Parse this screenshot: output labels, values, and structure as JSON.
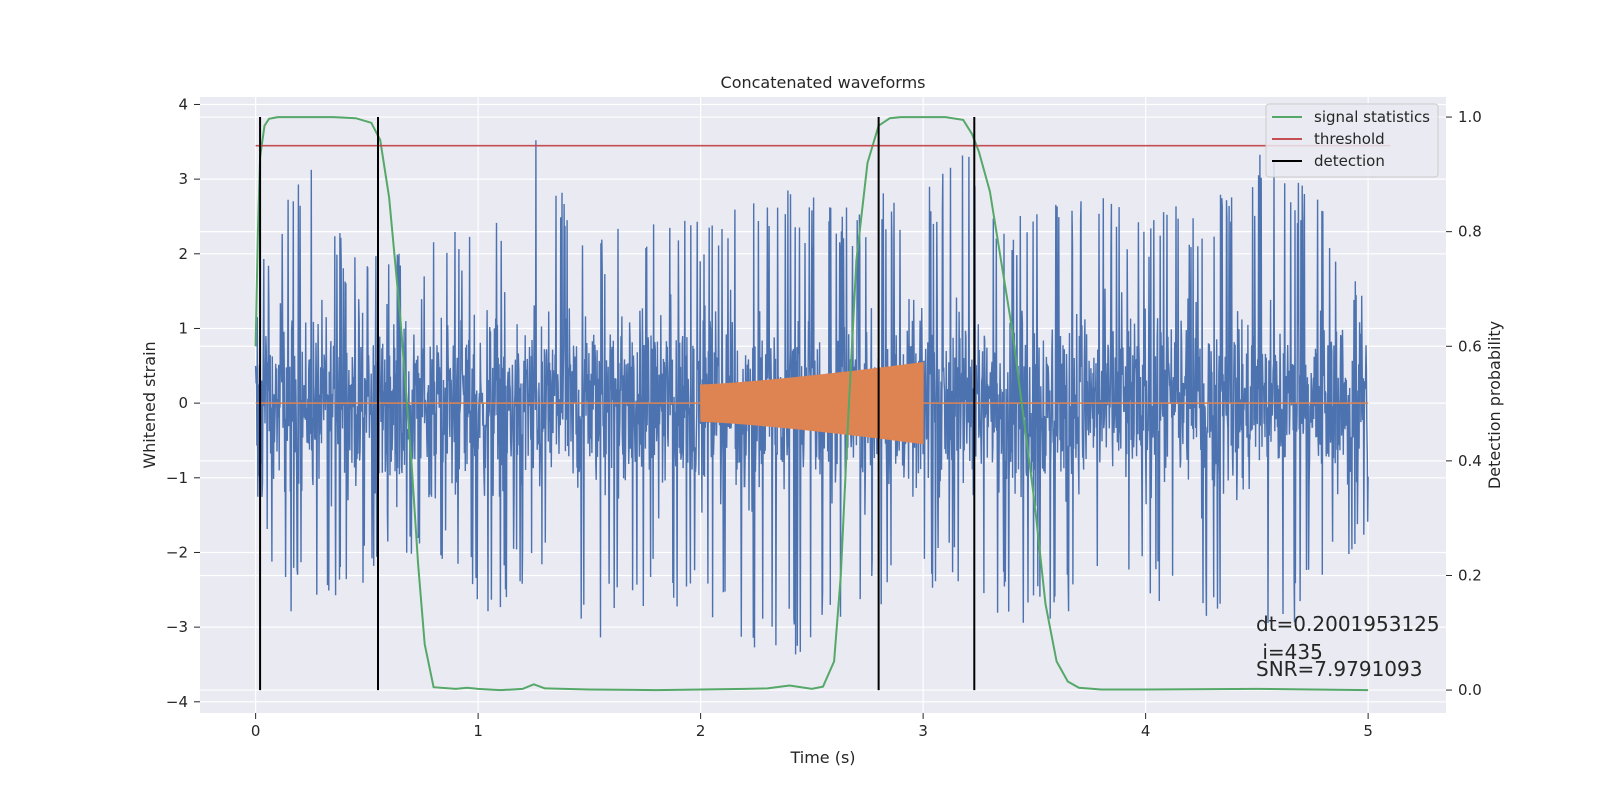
{
  "chart_data": {
    "type": "line",
    "title": "Concatenated waveforms",
    "xlabel": "Time (s)",
    "ylabel": "Whitened strain",
    "y2label": "Detection probability",
    "xlim": [
      -0.25,
      5.35
    ],
    "ylim": [
      -4.15,
      4.1
    ],
    "y2lim": [
      -0.04,
      1.035
    ],
    "xticks": [
      0,
      1,
      2,
      3,
      4,
      5
    ],
    "yticks": [
      -4,
      -3,
      -2,
      -1,
      0,
      1,
      2,
      3,
      4
    ],
    "y2ticks": [
      0.0,
      0.2,
      0.4,
      0.6,
      0.8,
      1.0
    ],
    "xtick_labels": [
      "0",
      "1",
      "2",
      "3",
      "4",
      "5"
    ],
    "ytick_labels": [
      "−4",
      "−3",
      "−2",
      "−1",
      "0",
      "1",
      "2",
      "3",
      "4"
    ],
    "y2tick_labels": [
      "0.0",
      "0.2",
      "0.4",
      "0.6",
      "0.8",
      "1.0"
    ],
    "grid": true,
    "legend_position": "top-right",
    "legend": [
      "signal statistics",
      "threshold",
      "detection"
    ],
    "colors": {
      "strain": "#4c72b0",
      "template": "#dd8452",
      "signal": "#55a868",
      "threshold": "#c44e52",
      "detection": "#000000",
      "background": "#eaeaf2",
      "grid": "#ffffff"
    },
    "series": [
      {
        "axis": "left",
        "color": "#4c72b0",
        "description_range": [
          0,
          5
        ],
        "band": [
          [
            0,
            2.1
          ],
          [
            0.1,
            2.3
          ],
          [
            0.25,
            3.7
          ],
          [
            0.4,
            2.1
          ],
          [
            0.55,
            2.0
          ],
          [
            0.8,
            2.3
          ],
          [
            1.0,
            2.3
          ],
          [
            1.27,
            3.7
          ],
          [
            1.5,
            2.2
          ],
          [
            1.8,
            2.6
          ],
          [
            2.0,
            2.5
          ],
          [
            2.3,
            3.1
          ],
          [
            2.6,
            2.6
          ],
          [
            2.8,
            2.8
          ],
          [
            3.0,
            2.9
          ],
          [
            3.2,
            3.4
          ],
          [
            3.4,
            2.5
          ],
          [
            3.6,
            2.8
          ],
          [
            3.8,
            2.8
          ],
          [
            4.0,
            2.6
          ],
          [
            4.3,
            2.7
          ],
          [
            4.6,
            3.6
          ],
          [
            4.8,
            2.6
          ],
          [
            5.0,
            1.4
          ]
        ],
        "band_low": [
          [
            0,
            -1.3
          ],
          [
            0.1,
            -2.8
          ],
          [
            0.3,
            -2.8
          ],
          [
            0.5,
            -2.5
          ],
          [
            0.8,
            -2.1
          ],
          [
            1.05,
            -2.9
          ],
          [
            1.3,
            -2.2
          ],
          [
            1.5,
            -3.3
          ],
          [
            1.8,
            -2.6
          ],
          [
            2.0,
            -2.9
          ],
          [
            2.3,
            -3.8
          ],
          [
            2.6,
            -2.9
          ],
          [
            2.9,
            -2.7
          ],
          [
            3.2,
            -2.4
          ],
          [
            3.45,
            -3.2
          ],
          [
            3.6,
            -2.9
          ],
          [
            3.8,
            -2.6
          ],
          [
            4.0,
            -2.7
          ],
          [
            4.2,
            -2.8
          ],
          [
            4.55,
            -3.3
          ],
          [
            4.62,
            -3.2
          ],
          [
            4.8,
            -2.6
          ],
          [
            5.0,
            -1.7
          ]
        ]
      },
      {
        "axis": "left",
        "color": "#dd8452",
        "chirp_start": 2.0,
        "chirp_end": 3.0,
        "amplitude_start": 0.25,
        "amplitude_end": 0.55
      },
      {
        "name": "signal statistics",
        "axis": "right",
        "color": "#55a868",
        "x": [
          0.0,
          0.01,
          0.02,
          0.04,
          0.06,
          0.1,
          0.2,
          0.35,
          0.45,
          0.52,
          0.56,
          0.6,
          0.65,
          0.7,
          0.73,
          0.76,
          0.8,
          0.9,
          0.95,
          1.0,
          1.1,
          1.2,
          1.25,
          1.3,
          1.5,
          1.8,
          2.0,
          2.2,
          2.3,
          2.4,
          2.5,
          2.55,
          2.6,
          2.63,
          2.66,
          2.7,
          2.75,
          2.8,
          2.85,
          2.9,
          3.0,
          3.1,
          3.18,
          3.22,
          3.25,
          3.3,
          3.4,
          3.5,
          3.55,
          3.6,
          3.65,
          3.7,
          3.8,
          4.0,
          4.5,
          5.0
        ],
        "y": [
          0.6,
          0.8,
          0.93,
          0.985,
          0.997,
          1.0,
          1.0,
          1.0,
          0.998,
          0.99,
          0.96,
          0.86,
          0.65,
          0.4,
          0.22,
          0.08,
          0.005,
          0.002,
          0.004,
          0.002,
          0.0,
          0.002,
          0.01,
          0.003,
          0.001,
          0.0,
          0.001,
          0.002,
          0.003,
          0.008,
          0.002,
          0.006,
          0.05,
          0.2,
          0.45,
          0.75,
          0.92,
          0.985,
          0.998,
          1.0,
          1.0,
          1.0,
          0.995,
          0.97,
          0.94,
          0.87,
          0.63,
          0.33,
          0.15,
          0.05,
          0.015,
          0.004,
          0.001,
          0.001,
          0.002,
          0.0
        ]
      },
      {
        "name": "threshold",
        "axis": "right",
        "color": "#c44e52",
        "x": [
          0,
          5.1
        ],
        "y": [
          0.95,
          0.95
        ]
      },
      {
        "name": "detection",
        "axis": "right",
        "color": "#000000",
        "x": [
          0.02,
          0.55,
          2.8,
          3.23
        ],
        "y_range": [
          0.0,
          1.0
        ]
      }
    ],
    "annotations": {
      "dt": "dt=0.2001953125",
      "i": " i=435",
      "snr": "SNR=7.9791093"
    }
  }
}
